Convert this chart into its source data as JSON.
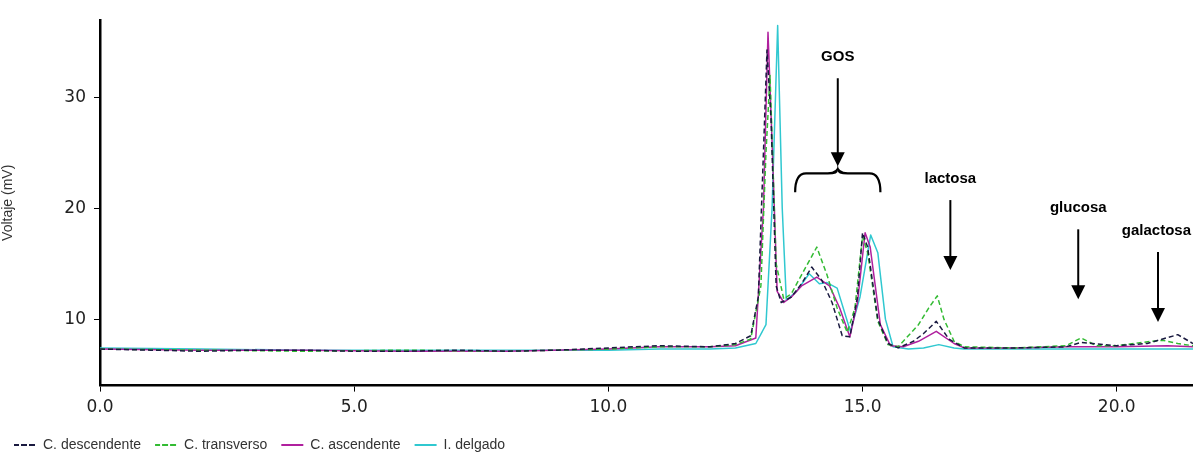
{
  "chart_data": {
    "type": "line",
    "ylabel": "Voltaje (mV)",
    "xlim": [
      0,
      21.5
    ],
    "ylim": [
      4,
      37
    ],
    "xticks": [
      {
        "value": 0,
        "label": "0.0"
      },
      {
        "value": 5,
        "label": "5.0"
      },
      {
        "value": 10,
        "label": "10.0"
      },
      {
        "value": 15,
        "label": "15.0"
      },
      {
        "value": 20,
        "label": "20.0"
      }
    ],
    "yticks": [
      10,
      20,
      30
    ],
    "grid": false,
    "legend": "bottom",
    "marker": "none",
    "series": [
      {
        "name": "C. descendente",
        "color": "#1a1a40",
        "line_style": "dashed",
        "x": [
          0,
          1,
          2,
          3,
          4,
          5,
          6,
          7,
          8,
          9,
          10,
          11,
          12,
          12.5,
          12.8,
          12.95,
          13.05,
          13.12,
          13.2,
          13.3,
          13.4,
          13.6,
          13.8,
          14.0,
          14.2,
          14.4,
          14.5,
          14.6,
          14.75,
          14.9,
          15.0,
          15.1,
          15.3,
          15.5,
          15.7,
          16.0,
          16.2,
          16.45,
          16.7,
          17.0,
          18,
          19,
          19.3,
          20,
          20.6,
          21.2,
          21.5
        ],
        "values": [
          7.3,
          7.2,
          7.1,
          7.2,
          7.2,
          7.1,
          7.1,
          7.2,
          7.1,
          7.2,
          7.4,
          7.6,
          7.5,
          7.8,
          8.5,
          12,
          25,
          34.3,
          28,
          13,
          11.5,
          12,
          13.2,
          14.7,
          13.5,
          11.5,
          10,
          8.5,
          8.4,
          12,
          17.8,
          16.5,
          10,
          7.8,
          7.4,
          8.0,
          8.7,
          9.8,
          8.2,
          7.4,
          7.4,
          7.5,
          7.9,
          7.6,
          7.8,
          8.6,
          7.8
        ]
      },
      {
        "name": "C. transverso",
        "color": "#33bb33",
        "line_style": "dashed",
        "x": [
          0,
          2,
          4,
          6,
          8,
          10,
          11,
          12,
          12.5,
          12.8,
          13.0,
          13.1,
          13.18,
          13.3,
          13.45,
          13.6,
          13.8,
          14.1,
          14.3,
          14.5,
          14.7,
          14.85,
          15.0,
          15.1,
          15.3,
          15.5,
          15.7,
          15.9,
          16.1,
          16.3,
          16.47,
          16.6,
          16.8,
          17.0,
          18,
          19,
          19.3,
          19.6,
          20,
          20.5,
          20.9,
          21.2,
          21.5
        ],
        "values": [
          7.3,
          7.2,
          7.1,
          7.2,
          7.1,
          7.3,
          7.5,
          7.5,
          7.7,
          8.2,
          13,
          25,
          32,
          15,
          11.8,
          12.3,
          14,
          16.5,
          14,
          11,
          8.8,
          11,
          17.5,
          16,
          9.8,
          7.7,
          7.5,
          8.5,
          9.5,
          11,
          12.1,
          10,
          8,
          7.5,
          7.4,
          7.6,
          8.3,
          7.6,
          7.6,
          7.9,
          8.1,
          7.8,
          7.6
        ]
      },
      {
        "name": "C. ascendente",
        "color": "#b0209e",
        "line_style": "solid",
        "x": [
          0,
          2,
          4,
          6,
          8,
          10,
          11,
          12,
          12.5,
          12.9,
          13.05,
          13.14,
          13.22,
          13.32,
          13.45,
          13.6,
          13.8,
          14.1,
          14.35,
          14.55,
          14.75,
          14.9,
          15.05,
          15.15,
          15.35,
          15.55,
          15.8,
          16.1,
          16.45,
          16.8,
          17.0,
          18,
          19,
          20,
          21,
          21.5
        ],
        "values": [
          7.3,
          7.2,
          7.2,
          7.1,
          7.1,
          7.3,
          7.5,
          7.5,
          7.6,
          8.3,
          20,
          35.9,
          26,
          12.5,
          11.5,
          12,
          13,
          13.8,
          13,
          11,
          8.4,
          11.5,
          17.8,
          16.5,
          9.5,
          7.6,
          7.5,
          8.0,
          8.9,
          7.8,
          7.4,
          7.4,
          7.5,
          7.5,
          7.6,
          7.5
        ]
      },
      {
        "name": "I. delgado",
        "color": "#30c8d0",
        "line_style": "solid",
        "x": [
          0,
          2,
          4,
          6,
          8,
          10,
          11,
          12,
          12.5,
          12.9,
          13.1,
          13.22,
          13.33,
          13.42,
          13.5,
          13.7,
          13.95,
          14.15,
          14.3,
          14.5,
          14.76,
          14.95,
          15.16,
          15.3,
          15.45,
          15.6,
          15.9,
          16.2,
          16.5,
          16.8,
          17.0,
          18,
          19,
          20,
          21,
          21.5
        ],
        "values": [
          7.4,
          7.3,
          7.2,
          7.2,
          7.2,
          7.2,
          7.3,
          7.3,
          7.4,
          7.8,
          9.5,
          20,
          36.5,
          20,
          11.7,
          12.5,
          14.1,
          13.2,
          13.3,
          12.8,
          8.9,
          12,
          17.6,
          16,
          10,
          7.5,
          7.3,
          7.4,
          7.7,
          7.4,
          7.3,
          7.3,
          7.3,
          7.3,
          7.3,
          7.3
        ]
      }
    ],
    "annotations": [
      "GOS",
      "lactosa",
      "glucosa",
      "galactosa"
    ]
  }
}
